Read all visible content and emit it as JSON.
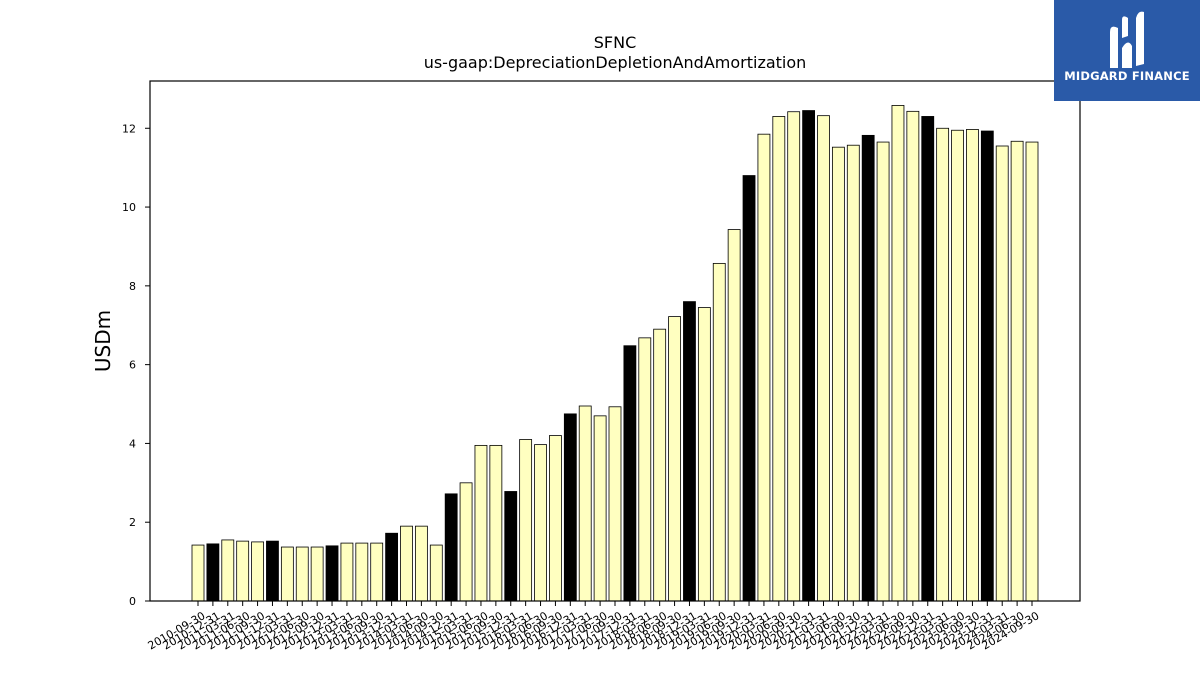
{
  "brand": {
    "name": "MIDGARD FINANCE",
    "logo_icon": "midgard-m-icon",
    "color": "#2a5aa8"
  },
  "chart_data": {
    "type": "bar",
    "title": "SFNC",
    "subtitle": "us-gaap:DepreciationDepletionAndAmortization",
    "ylabel": "USDm",
    "xlabel": "",
    "ylim": [
      0,
      13.2
    ],
    "yticks": [
      0,
      2,
      4,
      6,
      8,
      10,
      12
    ],
    "colors": {
      "quarter": "#ffffc0",
      "year_end": "#000000",
      "edge": "#000000"
    },
    "categories": [
      "2010-09-30",
      "2010-12-31",
      "2011-03-31",
      "2011-06-30",
      "2011-09-30",
      "2011-12-31",
      "2012-03-31",
      "2012-06-30",
      "2012-09-30",
      "2012-12-31",
      "2013-03-31",
      "2013-06-30",
      "2013-09-30",
      "2013-12-31",
      "2014-03-31",
      "2014-06-30",
      "2014-09-30",
      "2014-12-31",
      "2015-03-31",
      "2015-06-30",
      "2015-09-30",
      "2015-12-31",
      "2016-03-31",
      "2016-06-30",
      "2016-09-30",
      "2016-12-31",
      "2017-03-31",
      "2017-06-30",
      "2017-09-30",
      "2017-12-31",
      "2018-03-31",
      "2018-06-30",
      "2018-09-30",
      "2018-12-31",
      "2019-03-31",
      "2019-06-30",
      "2019-09-30",
      "2019-12-31",
      "2020-03-31",
      "2020-06-30",
      "2020-09-30",
      "2020-12-31",
      "2021-03-31",
      "2021-06-30",
      "2021-09-30",
      "2021-12-31",
      "2022-03-31",
      "2022-06-30",
      "2022-09-30",
      "2022-12-31",
      "2023-03-31",
      "2023-06-30",
      "2023-09-30",
      "2023-12-31",
      "2024-03-31",
      "2024-06-30",
      "2024-09-30"
    ],
    "values": [
      1.42,
      1.45,
      1.55,
      1.52,
      1.5,
      1.52,
      1.37,
      1.37,
      1.37,
      1.4,
      1.47,
      1.47,
      1.47,
      1.72,
      1.9,
      1.9,
      1.42,
      2.72,
      3.0,
      3.95,
      3.95,
      2.78,
      4.1,
      3.97,
      4.2,
      4.75,
      4.95,
      4.7,
      4.93,
      6.48,
      6.68,
      6.9,
      7.22,
      7.6,
      7.45,
      8.57,
      9.43,
      10.8,
      11.85,
      12.3,
      12.42,
      12.45,
      12.32,
      11.52,
      11.57,
      11.82,
      11.65,
      12.58,
      12.43,
      12.3,
      12.0,
      11.95,
      11.97,
      11.93,
      11.55,
      11.67,
      11.65
    ],
    "year_end_flags": [
      0,
      1,
      0,
      0,
      0,
      1,
      0,
      0,
      0,
      1,
      0,
      0,
      0,
      1,
      0,
      0,
      0,
      1,
      0,
      0,
      0,
      1,
      0,
      0,
      0,
      1,
      0,
      0,
      0,
      1,
      0,
      0,
      0,
      1,
      0,
      0,
      0,
      1,
      0,
      0,
      0,
      1,
      0,
      0,
      0,
      1,
      0,
      0,
      0,
      1,
      0,
      0,
      0,
      1,
      0,
      0,
      0
    ]
  }
}
